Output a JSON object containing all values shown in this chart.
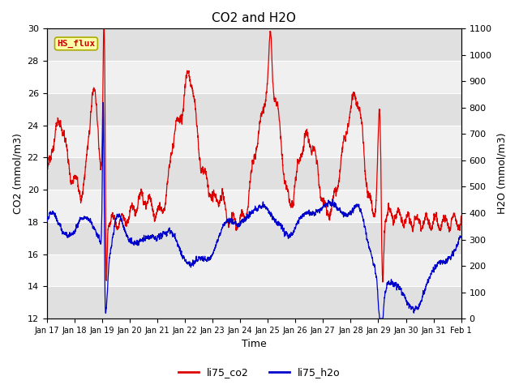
{
  "title": "CO2 and H2O",
  "xlabel": "Time",
  "ylabel_left": "CO2 (mmol/m3)",
  "ylabel_right": "H2O (mmol/m3)",
  "ylim_left": [
    12,
    30
  ],
  "ylim_right": [
    0,
    1100
  ],
  "yticks_left": [
    12,
    14,
    16,
    18,
    20,
    22,
    24,
    26,
    28,
    30
  ],
  "yticks_right": [
    0,
    100,
    200,
    300,
    400,
    500,
    600,
    700,
    800,
    900,
    1000,
    1100
  ],
  "xtick_labels": [
    "Jan 17",
    "Jan 18",
    "Jan 19",
    "Jan 20",
    "Jan 21",
    "Jan 22",
    "Jan 23",
    "Jan 24",
    "Jan 25",
    "Jan 26",
    "Jan 27",
    "Jan 28",
    "Jan 29",
    "Jan 30",
    "Jan 31",
    "Feb 1"
  ],
  "color_co2": "#dd0000",
  "color_h2o": "#0000cc",
  "label_co2": "li75_co2",
  "label_h2o": "li75_h2o",
  "annotation_text": "HS_flux",
  "annotation_color": "#cc0000",
  "annotation_bg": "#ffffaa",
  "annotation_border": "#aaaa00",
  "fig_bg": "#ffffff",
  "axes_bg_light": "#f0f0f0",
  "axes_bg_dark": "#e0e0e0",
  "title_fontsize": 11,
  "axis_fontsize": 9,
  "tick_fontsize": 8,
  "legend_fontsize": 9
}
